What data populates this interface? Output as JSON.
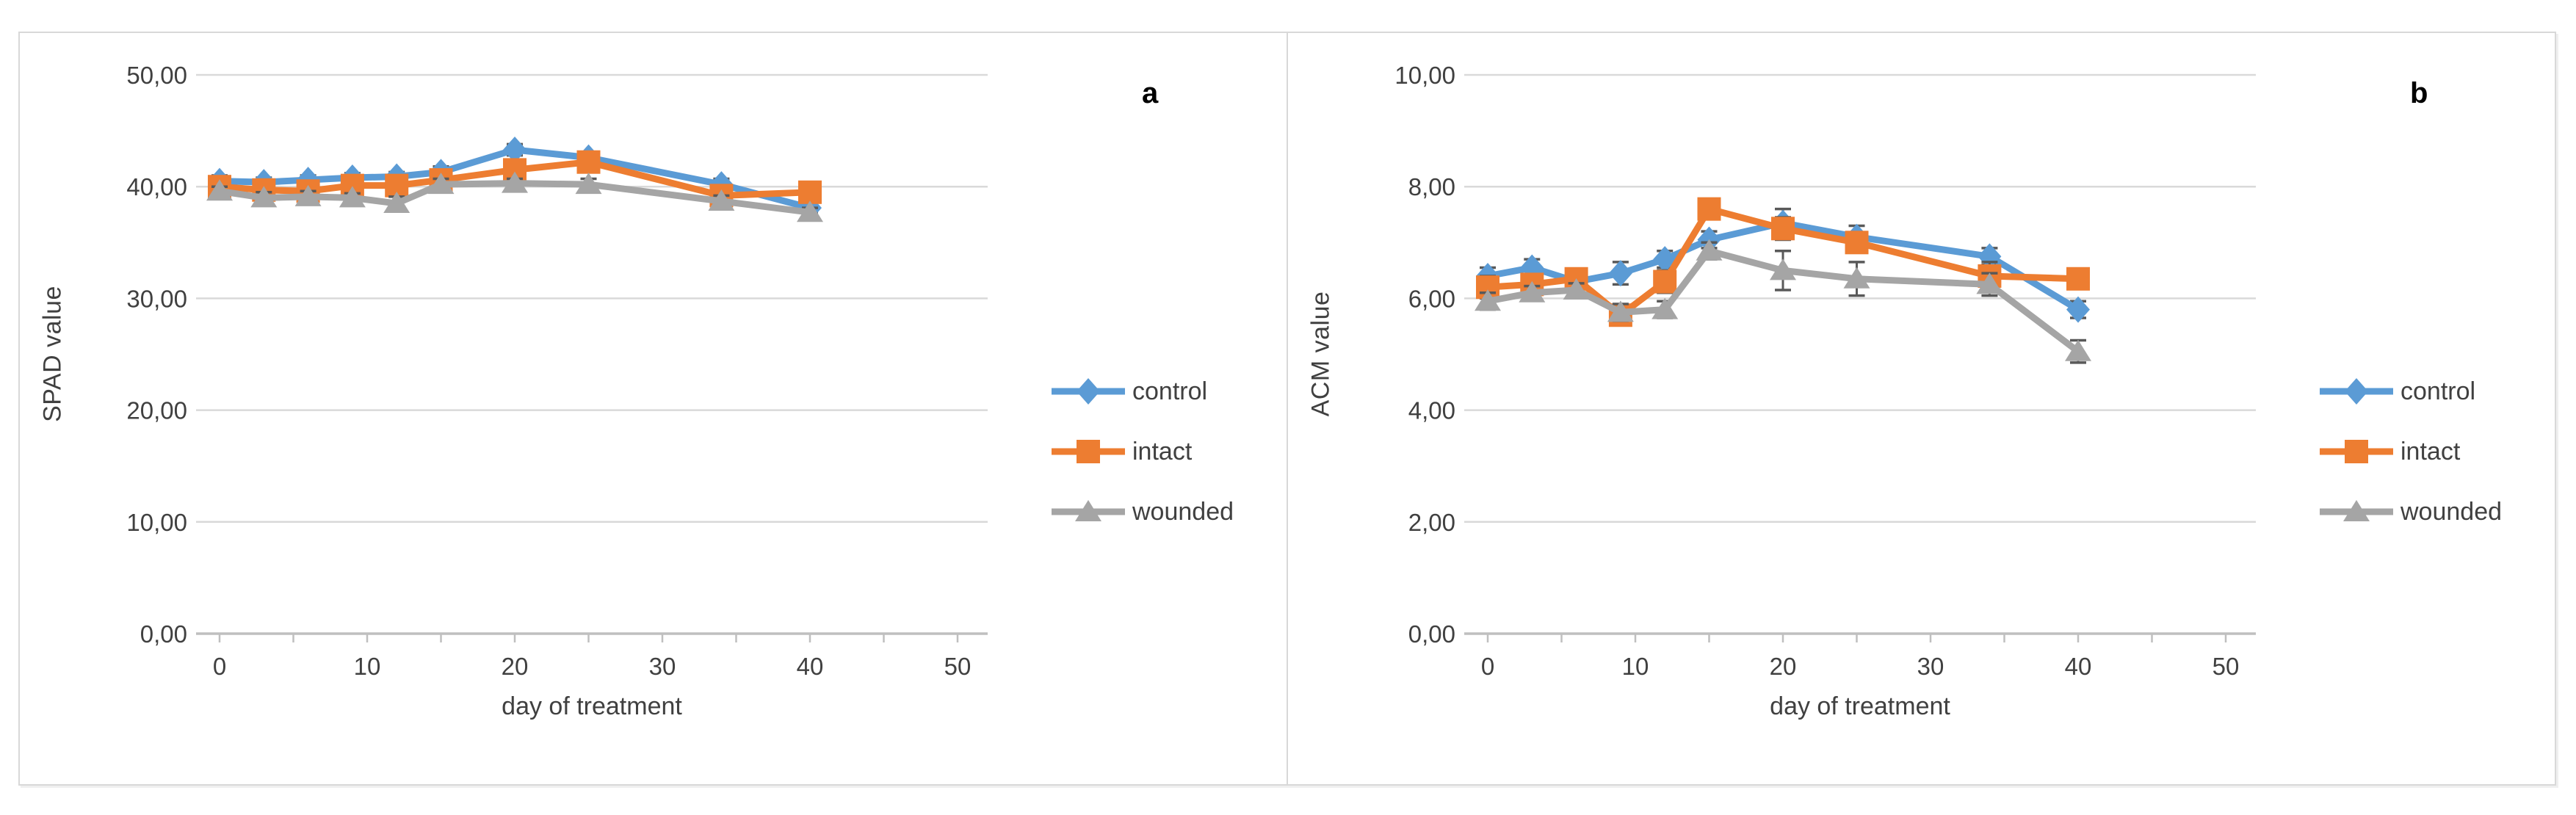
{
  "figure": {
    "background": "#FFFFFF",
    "frame_border_color": "#D8D8D8",
    "divider_color": "#D8D8D8",
    "gridline_color": "#D9D9D9",
    "axis_line_color": "#BFBFBF",
    "tick_text_color": "#404040",
    "error_bar_color": "#595959"
  },
  "chart_data": [
    {
      "type": "line",
      "panel_label": "a",
      "xlabel": "day of treatment",
      "ylabel": "SPAD value",
      "xlim": [
        0,
        50
      ],
      "ylim": [
        0,
        50
      ],
      "grid": "horizontal-major",
      "legend_position": "right-middle",
      "x": [
        0,
        3,
        6,
        9,
        12,
        15,
        20,
        25,
        34,
        40
      ],
      "xticks": {
        "values": [
          0,
          10,
          20,
          30,
          40,
          50
        ],
        "labels": [
          "0",
          "10",
          "20",
          "30",
          "40",
          "50"
        ],
        "minor_step": 5
      },
      "yticks": {
        "values": [
          0,
          10,
          20,
          30,
          40,
          50
        ],
        "labels": [
          "0,00",
          "10,00",
          "20,00",
          "30,00",
          "40,00",
          "50,00"
        ]
      },
      "series": [
        {
          "name": "control",
          "color": "#5B9BD5",
          "marker": "diamond",
          "values": [
            40.5,
            40.4,
            40.6,
            40.8,
            40.9,
            41.3,
            43.3,
            42.6,
            40.2,
            38.1
          ],
          "errors": [
            0.5,
            0.4,
            0.4,
            0.4,
            0.4,
            0.5,
            0.5,
            0.5,
            0.5,
            0.4
          ]
        },
        {
          "name": "intact",
          "color": "#ED7D31",
          "marker": "square",
          "values": [
            40.0,
            39.7,
            39.6,
            40.1,
            40.1,
            40.6,
            41.5,
            42.2,
            39.2,
            39.5
          ],
          "errors": [
            0.5,
            0.5,
            0.5,
            0.5,
            0.5,
            0.5,
            0.5,
            0.5,
            0.5,
            0.5
          ]
        },
        {
          "name": "wounded",
          "color": "#A5A5A5",
          "marker": "triangle",
          "values": [
            39.6,
            39.0,
            39.1,
            39.0,
            38.5,
            40.2,
            40.3,
            40.2,
            38.7,
            37.7
          ],
          "errors": [
            0.4,
            0.5,
            0.5,
            0.4,
            0.6,
            0.5,
            0.4,
            0.5,
            0.5,
            0.4
          ]
        }
      ]
    },
    {
      "type": "line",
      "panel_label": "b",
      "xlabel": "day of treatment",
      "ylabel": "ACM value",
      "xlim": [
        0,
        50
      ],
      "ylim": [
        0,
        10
      ],
      "grid": "horizontal-major",
      "legend_position": "right-middle",
      "x": [
        0,
        3,
        6,
        9,
        12,
        15,
        20,
        25,
        34,
        40
      ],
      "xticks": {
        "values": [
          0,
          10,
          20,
          30,
          40,
          50
        ],
        "labels": [
          "0",
          "10",
          "20",
          "30",
          "40",
          "50"
        ],
        "minor_step": 5
      },
      "yticks": {
        "values": [
          0,
          2,
          4,
          6,
          8,
          10
        ],
        "labels": [
          "0,00",
          "2,00",
          "4,00",
          "6,00",
          "8,00",
          "10,00"
        ]
      },
      "series": [
        {
          "name": "control",
          "color": "#5B9BD5",
          "marker": "diamond",
          "values": [
            6.4,
            6.55,
            6.3,
            6.45,
            6.7,
            7.05,
            7.35,
            7.1,
            6.75,
            5.8
          ],
          "errors": [
            0.15,
            0.15,
            0.12,
            0.2,
            0.15,
            0.15,
            0.25,
            0.2,
            0.15,
            0.15
          ]
        },
        {
          "name": "intact",
          "color": "#ED7D31",
          "marker": "square",
          "values": [
            6.2,
            6.25,
            6.35,
            5.7,
            6.3,
            7.6,
            7.25,
            7.0,
            6.4,
            6.35
          ],
          "errors": [
            0.2,
            0.15,
            0.12,
            0.15,
            0.2,
            0.12,
            0.2,
            0.15,
            0.25,
            0.1
          ]
        },
        {
          "name": "wounded",
          "color": "#A5A5A5",
          "marker": "triangle",
          "values": [
            5.95,
            6.1,
            6.15,
            5.75,
            5.8,
            6.85,
            6.5,
            6.35,
            6.25,
            5.05
          ],
          "errors": [
            0.15,
            0.12,
            0.12,
            0.15,
            0.15,
            0.15,
            0.35,
            0.3,
            0.2,
            0.2
          ]
        }
      ]
    }
  ]
}
